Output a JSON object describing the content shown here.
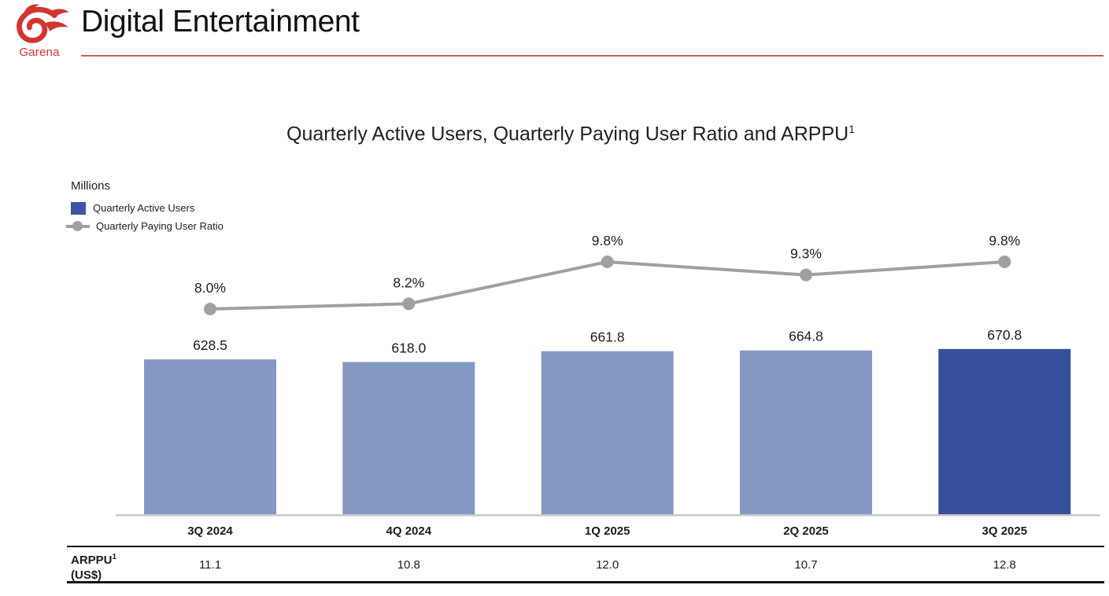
{
  "header": {
    "logo_text": "Garena",
    "title": "Digital Entertainment"
  },
  "chart": {
    "title": "Quarterly Active Users, Quarterly Paying User Ratio and ARPPU",
    "title_sup": "1",
    "units_label": "Millions",
    "legend": {
      "bar_label": "Quarterly Active Users",
      "line_label": "Quarterly Paying User Ratio"
    }
  },
  "chart_data": {
    "type": "bar",
    "title": "Quarterly Active Users, Quarterly Paying User Ratio and ARPPU¹",
    "categories": [
      "3Q 2024",
      "4Q 2024",
      "1Q 2025",
      "2Q 2025",
      "3Q 2025"
    ],
    "series": [
      {
        "name": "Quarterly Active Users",
        "type": "bar",
        "unit": "millions",
        "values": [
          628.5,
          618.0,
          661.8,
          664.8,
          670.8
        ],
        "labels": [
          "628.5",
          "618.0",
          "661.8",
          "664.8",
          "670.8"
        ],
        "highlight_last": true
      },
      {
        "name": "Quarterly Paying User Ratio",
        "type": "line",
        "unit": "percent",
        "values": [
          8.0,
          8.2,
          9.8,
          9.3,
          9.8
        ],
        "labels": [
          "8.0%",
          "8.2%",
          "9.8%",
          "9.3%",
          "9.8%"
        ]
      }
    ],
    "arppu_table": {
      "label": "ARPPU",
      "label_sup": "1",
      "label_unit": "(US$)",
      "values": [
        "11.1",
        "10.8",
        "12.0",
        "10.7",
        "12.8"
      ]
    },
    "ylabel": "Millions",
    "grid": false,
    "legend_position": "top-left"
  },
  "colors": {
    "bar_light": "#8598c4",
    "bar_highlight": "#36509b",
    "legend_bar_swatch": "#3a55a4",
    "line_gray": "#a0a0a0",
    "axis_gray": "#c9c9c9",
    "brand_red": "#d23430",
    "rule_red": "#d97b74",
    "table_border": "#141414",
    "text": "#1d1d1d"
  }
}
